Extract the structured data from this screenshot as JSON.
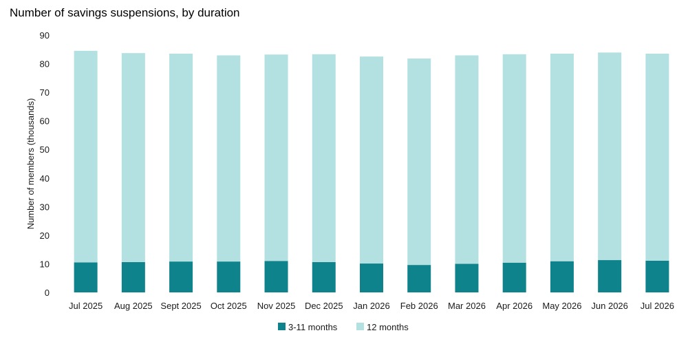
{
  "chart_data": {
    "type": "bar",
    "stacked": true,
    "title": "Number of savings suspensions, by duration",
    "xlabel": "",
    "ylabel": "Number of members (thousands)",
    "ylim": [
      0,
      90
    ],
    "yticks": [
      0,
      10,
      20,
      30,
      40,
      50,
      60,
      70,
      80,
      90
    ],
    "grid": false,
    "legend_position": "bottom",
    "categories": [
      "Jul 2025",
      "Aug 2025",
      "Sept 2025",
      "Oct 2025",
      "Nov 2025",
      "Dec 2025",
      "Jan 2026",
      "Feb 2026",
      "Mar 2026",
      "Apr 2026",
      "May 2026",
      "Jun 2026",
      "Jul 2026"
    ],
    "series": [
      {
        "name": "3-11 months",
        "color": "#0e838c",
        "values": [
          10.5,
          10.6,
          10.8,
          10.8,
          11.0,
          10.6,
          10.1,
          9.6,
          10.0,
          10.4,
          10.9,
          11.3,
          11.1
        ]
      },
      {
        "name": "12 months",
        "color": "#b3e0e0",
        "values": [
          74.0,
          73.1,
          72.7,
          72.1,
          72.2,
          72.7,
          72.4,
          72.2,
          72.9,
          72.9,
          72.6,
          72.6,
          72.4
        ]
      }
    ]
  }
}
